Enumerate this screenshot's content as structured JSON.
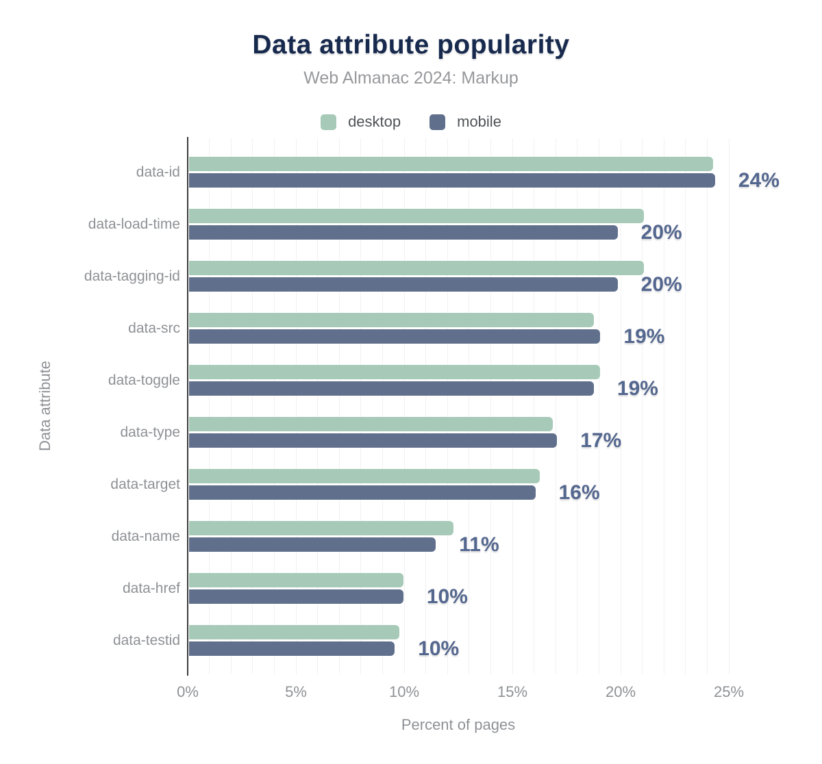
{
  "title": "Data attribute popularity",
  "subtitle": "Web Almanac 2024: Markup",
  "legend": [
    {
      "label": "desktop",
      "color": "#a7cab8"
    },
    {
      "label": "mobile",
      "color": "#60708c"
    }
  ],
  "chart_data": {
    "type": "bar",
    "orientation": "horizontal",
    "title": "Data attribute popularity",
    "subtitle": "Web Almanac 2024: Markup",
    "xlabel": "Percent of pages",
    "ylabel": "Data attribute",
    "xlim": [
      0,
      25
    ],
    "x_ticks": [
      "0%",
      "5%",
      "10%",
      "15%",
      "20%",
      "25%"
    ],
    "grid": "vertical minor gridlines every 1%",
    "legend_position": "top-center",
    "categories": [
      "data-id",
      "data-load-time",
      "data-tagging-id",
      "data-src",
      "data-toggle",
      "data-type",
      "data-target",
      "data-name",
      "data-href",
      "data-testid"
    ],
    "series": [
      {
        "name": "desktop",
        "color": "#a7cab8",
        "values": [
          24.2,
          21.0,
          21.0,
          18.7,
          19.0,
          16.8,
          16.2,
          12.2,
          9.9,
          9.7
        ]
      },
      {
        "name": "mobile",
        "color": "#60708c",
        "values": [
          24.3,
          19.8,
          19.8,
          19.0,
          18.7,
          17.0,
          16.0,
          11.4,
          9.9,
          9.5
        ]
      }
    ],
    "value_labels": [
      "24%",
      "20%",
      "20%",
      "19%",
      "19%",
      "17%",
      "16%",
      "11%",
      "10%",
      "10%"
    ],
    "colors": {
      "desktop_bar": "#a7cab8",
      "mobile_bar": "#60708c",
      "value_label": "#54678f",
      "title_text": "#17294d",
      "subtitle_text": "#97989b",
      "axis_text": "#8e9195",
      "legend_text": "#4f5357",
      "gridline": "#f1f1f5",
      "axis_line": "#3c3c3c",
      "background": "#ffffff"
    }
  }
}
